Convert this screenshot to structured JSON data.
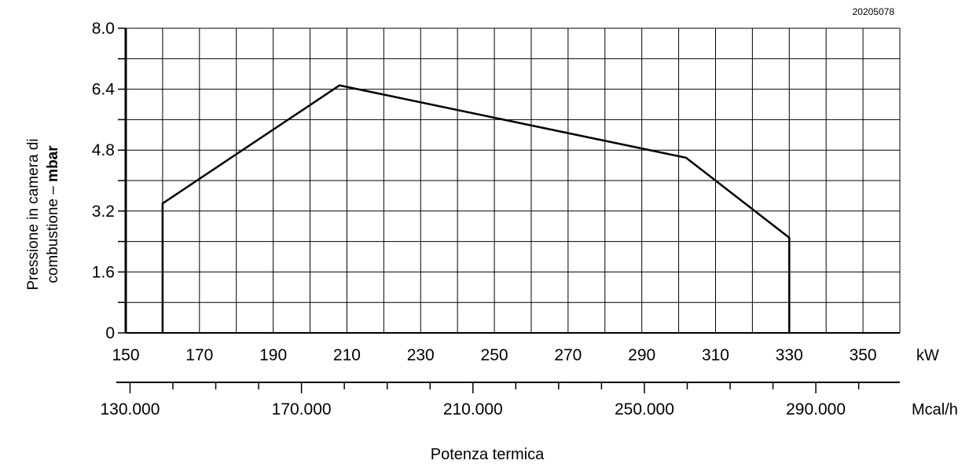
{
  "chart_data": {
    "type": "line",
    "title": "",
    "code": "20205078",
    "ylabel_line1": "Pressione in camera di",
    "ylabel_line2_prefix": "combustione – ",
    "ylabel_line2_unit": "mbar",
    "xlabel": "Potenza termica",
    "ylim": [
      0,
      8.0
    ],
    "xlim": [
      150,
      360
    ],
    "y_ticks": [
      "0",
      "1.6",
      "3.2",
      "4.8",
      "6.4",
      "8.0"
    ],
    "x_ticks_kw": [
      "150",
      "170",
      "190",
      "210",
      "230",
      "250",
      "270",
      "290",
      "310",
      "330",
      "350"
    ],
    "x_unit_kw": "kW",
    "x_ticks_mcal": [
      "130.000",
      "170.000",
      "210.000",
      "250.000",
      "290.000"
    ],
    "x_unit_mcal": "Mcal/h",
    "grid": true,
    "series": [
      {
        "x": [
          160,
          160,
          208,
          302,
          330,
          330
        ],
        "y": [
          0,
          3.4,
          6.5,
          4.6,
          2.5,
          0
        ]
      }
    ]
  }
}
